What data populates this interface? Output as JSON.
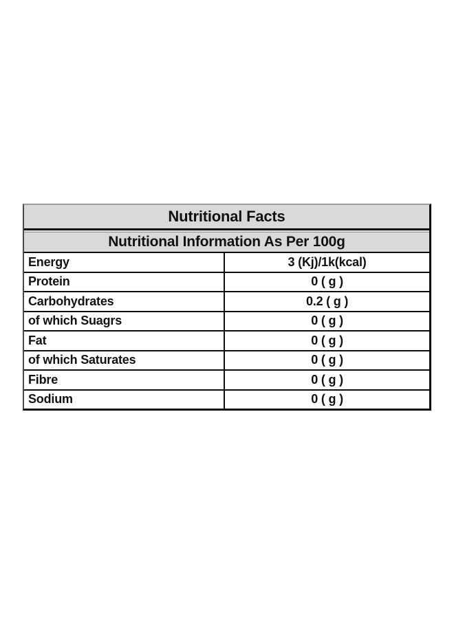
{
  "table": {
    "title": "Nutritional Facts",
    "subtitle": "Nutritional Information As Per 100g",
    "rows": [
      {
        "label": "Energy",
        "value": "3 (Kj)/1k(kcal)"
      },
      {
        "label": "Protein",
        "value": "0 ( g )"
      },
      {
        "label": "Carbohydrates",
        "value": "0.2 ( g )"
      },
      {
        "label": "of which Suagrs",
        "value": "0 ( g )"
      },
      {
        "label": "Fat",
        "value": "0 ( g )"
      },
      {
        "label": "of which Saturates",
        "value": "0 ( g )"
      },
      {
        "label": "Fibre",
        "value": "0 ( g )"
      },
      {
        "label": "Sodium",
        "value": "0 ( g )"
      }
    ],
    "colors": {
      "header_bg": "#d9d9d9",
      "border": "#0d0d0d",
      "text": "#111111",
      "page_bg": "#ffffff"
    }
  }
}
